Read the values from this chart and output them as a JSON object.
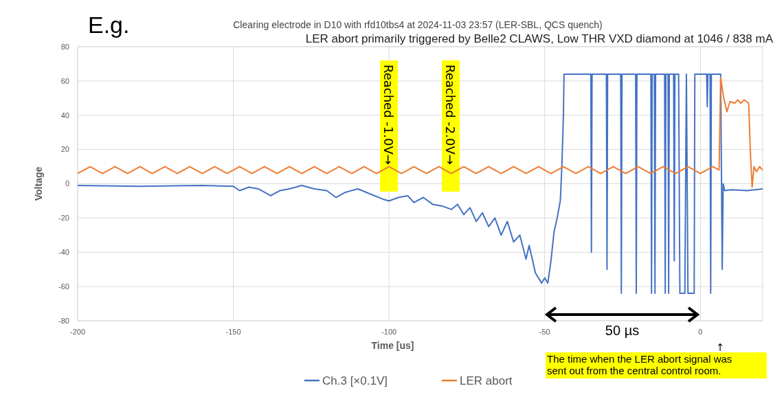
{
  "chart_data": {
    "type": "line",
    "title": "Clearing electrode in D10 with rfd10tbs4 at 2024-11-03 23:57 (LER-SBL, QCS quench)",
    "subtitle": "LER abort primarily triggered by Belle2 CLAWS, Low THR VXD diamond at 1046 / 838 mA",
    "xlabel": "Time  [us]",
    "ylabel": "Voltage",
    "xlim": [
      -200,
      20
    ],
    "xticks": [
      -200,
      -150,
      -100,
      -50,
      0
    ],
    "ylim": [
      -80,
      80
    ],
    "yticks": [
      -80,
      -60,
      -40,
      -20,
      0,
      20,
      40,
      60,
      80
    ],
    "grid": true,
    "legend": "bottom",
    "line_style": "solid",
    "marker": "none",
    "annotations": [
      "E.g.",
      "Reached -1.0V→",
      "Reached -2.0V→",
      "50 µs",
      "↑ The time when the LER abort signal was sent out from the central control room."
    ],
    "series": [
      {
        "name": "Ch.3 [×0.1V]",
        "color": "#4472c4",
        "x": [
          -200,
          -180,
          -160,
          -150,
          -148,
          -145,
          -142,
          -138,
          -135,
          -132,
          -128,
          -124,
          -120,
          -117,
          -114,
          -110,
          -106,
          -102,
          -100,
          -97,
          -94,
          -92,
          -89,
          -86,
          -83,
          -80,
          -78,
          -76,
          -74,
          -72,
          -70,
          -68,
          -66,
          -64,
          -62,
          -60,
          -58,
          -56,
          -55,
          -53,
          -51,
          -50,
          -49,
          -48,
          -47,
          -46,
          -45,
          -44.5,
          -44,
          -43.8,
          -35.2,
          -35,
          -34.8,
          -30.2,
          -30,
          -29.8,
          -25.6,
          -25.4,
          -25.2,
          -20.8,
          -20.6,
          -20.4,
          -15.9,
          -15.7,
          -15.5,
          -14.8,
          -14.6,
          -14.4,
          -11.5,
          -11.3,
          -11.1,
          -10.4,
          -10.2,
          -10,
          -8.6,
          -8.4,
          -8.2,
          -7,
          -6.6,
          -5,
          -4.5,
          -4,
          -2,
          -1.8,
          2,
          2.2,
          2.4,
          3.1,
          3.3,
          3.5,
          6.5,
          7,
          7.3,
          7.8,
          10,
          15,
          20
        ],
        "values": [
          -1,
          -1.5,
          -1,
          -1.5,
          -4,
          -2,
          -3,
          -7,
          -4,
          -3,
          -1,
          -3,
          -4,
          -8,
          -5,
          -3,
          -6,
          -9,
          -10,
          -8,
          -7,
          -11,
          -8,
          -12,
          -13,
          -15,
          -12,
          -18,
          -14,
          -22,
          -17,
          -25,
          -20,
          -30,
          -22,
          -34,
          -30,
          -44,
          -36,
          -52,
          -58,
          -55,
          -58,
          -45,
          -28,
          -20,
          -10,
          10,
          40,
          64,
          64,
          -40,
          64,
          64,
          -50,
          64,
          64,
          -64,
          64,
          64,
          -64,
          64,
          64,
          -64,
          64,
          64,
          -64,
          64,
          64,
          -64,
          64,
          64,
          -64,
          64,
          64,
          -45,
          64,
          64,
          -64,
          -64,
          64,
          -64,
          -64,
          64,
          64,
          45,
          64,
          64,
          -64,
          64,
          64,
          -50,
          0,
          -4,
          -3.5,
          -4,
          -3
        ]
      },
      {
        "name": "LER abort",
        "color": "#ed7d31",
        "x": [
          -200,
          -196,
          -192,
          -188,
          -184,
          -180,
          -176,
          -172,
          -168,
          -164,
          -160,
          -156,
          -152,
          -148,
          -144,
          -140,
          -136,
          -132,
          -128,
          -124,
          -120,
          -116,
          -112,
          -108,
          -104,
          -100,
          -96,
          -92,
          -88,
          -84,
          -80,
          -76,
          -72,
          -68,
          -64,
          -60,
          -56,
          -52,
          -48,
          -44,
          -40,
          -36,
          -32,
          -28,
          -24,
          -20,
          -16,
          -12,
          -8,
          -4,
          0,
          4,
          6,
          6.5,
          7.5,
          8.5,
          9.5,
          11,
          12,
          13,
          14,
          15.5,
          16,
          16.6,
          17.2,
          18,
          19,
          20
        ],
        "values": [
          6,
          10,
          6,
          10,
          6,
          10,
          6,
          10,
          6,
          10,
          6,
          10,
          6,
          10,
          6,
          10,
          6,
          10,
          6,
          10,
          6,
          10,
          6,
          10,
          6,
          10,
          6,
          10,
          6,
          10,
          6,
          10,
          6,
          10,
          6,
          10,
          6,
          10,
          6,
          10,
          6,
          10,
          6,
          10,
          6,
          10,
          6,
          10,
          6,
          10,
          6,
          10,
          8,
          62,
          50,
          42,
          48,
          47,
          49,
          47,
          49,
          47,
          20,
          -2,
          10,
          7,
          10,
          8
        ]
      }
    ]
  }
}
